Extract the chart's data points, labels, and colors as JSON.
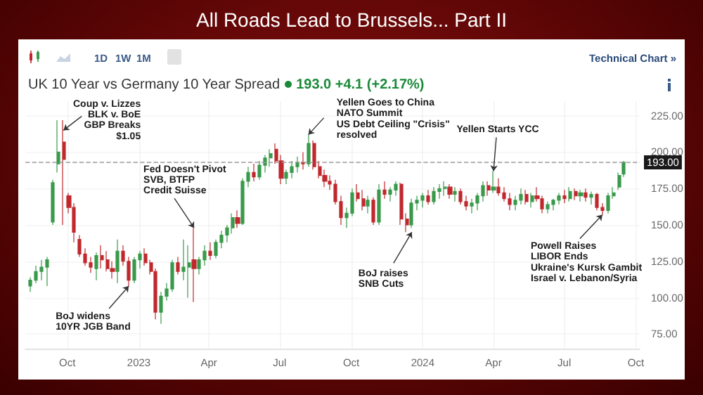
{
  "chart_data": {
    "type": "candlestick",
    "title": "All Roads Lead to Brussels... Part II",
    "subtitle": "UK 10 Year vs Germany 10 Year Spread",
    "ylabel": "193.0 +4.1 (+2.17%)",
    "x": [
      "2022-08-15",
      "2022-08-22",
      "2022-08-29",
      "2022-09-05",
      "2022-09-12",
      "2022-09-19",
      "2022-09-26",
      "2022-10-03",
      "2022-10-10",
      "2022-10-17",
      "2022-10-24",
      "2022-10-31",
      "2022-11-07",
      "2022-11-14",
      "2022-11-21",
      "2022-11-28",
      "2022-12-05",
      "2022-12-12",
      "2022-12-19",
      "2022-12-26",
      "2023-01-02",
      "2023-01-09",
      "2023-01-16",
      "2023-01-23",
      "2023-01-30",
      "2023-02-06",
      "2023-02-13",
      "2023-02-20",
      "2023-02-27",
      "2023-03-06",
      "2023-03-13",
      "2023-03-20",
      "2023-03-27",
      "2023-04-03",
      "2023-04-10",
      "2023-04-17",
      "2023-04-24",
      "2023-05-01",
      "2023-05-08",
      "2023-05-15",
      "2023-05-22",
      "2023-05-29",
      "2023-06-05",
      "2023-06-12",
      "2023-06-19",
      "2023-06-26",
      "2023-07-03",
      "2023-07-10",
      "2023-07-17",
      "2023-07-24",
      "2023-07-31",
      "2023-08-07",
      "2023-08-14",
      "2023-08-21",
      "2023-08-28",
      "2023-09-04",
      "2023-09-11",
      "2023-09-18",
      "2023-09-25",
      "2023-10-02",
      "2023-10-09",
      "2023-10-16",
      "2023-10-23",
      "2023-10-30",
      "2023-11-06",
      "2023-11-13",
      "2023-11-20",
      "2023-11-27",
      "2023-12-04",
      "2023-12-11",
      "2023-12-18",
      "2023-12-25",
      "2024-01-01",
      "2024-01-08",
      "2024-01-15",
      "2024-01-22",
      "2024-01-29",
      "2024-02-05",
      "2024-02-12",
      "2024-02-19",
      "2024-02-26",
      "2024-03-04",
      "2024-03-11",
      "2024-03-18",
      "2024-03-25",
      "2024-04-01",
      "2024-04-08",
      "2024-04-15",
      "2024-04-22",
      "2024-04-29",
      "2024-05-06",
      "2024-05-13",
      "2024-05-20",
      "2024-05-27",
      "2024-06-03",
      "2024-06-10",
      "2024-06-17",
      "2024-06-24",
      "2024-07-01",
      "2024-07-08",
      "2024-07-15",
      "2024-07-22",
      "2024-07-29",
      "2024-08-05",
      "2024-08-12",
      "2024-08-19",
      "2024-08-26",
      "2024-09-02",
      "2024-09-09",
      "2024-09-16"
    ],
    "ohlc": [
      [
        108,
        114,
        104,
        112
      ],
      [
        112,
        122,
        110,
        118
      ],
      [
        118,
        126,
        112,
        121
      ],
      [
        121,
        128,
        108,
        126
      ],
      [
        152,
        181,
        150,
        179
      ],
      [
        192,
        222,
        186,
        200
      ],
      [
        207,
        222,
        150,
        195
      ],
      [
        170,
        172,
        158,
        162
      ],
      [
        162,
        165,
        138,
        145
      ],
      [
        140,
        143,
        128,
        130
      ],
      [
        130,
        134,
        122,
        124
      ],
      [
        124,
        128,
        117,
        121
      ],
      [
        120,
        131,
        112,
        129
      ],
      [
        129,
        136,
        120,
        126
      ],
      [
        126,
        132,
        118,
        120
      ],
      [
        120,
        125,
        113,
        118
      ],
      [
        118,
        140,
        110,
        132
      ],
      [
        132,
        136,
        122,
        125
      ],
      [
        125,
        128,
        108,
        112
      ],
      [
        112,
        128,
        110,
        126
      ],
      [
        126,
        132,
        120,
        130
      ],
      [
        130,
        134,
        122,
        124
      ],
      [
        124,
        126,
        116,
        118
      ],
      [
        118,
        120,
        85,
        90
      ],
      [
        90,
        104,
        82,
        101
      ],
      [
        101,
        110,
        98,
        106
      ],
      [
        106,
        126,
        104,
        124
      ],
      [
        124,
        128,
        116,
        118
      ],
      [
        118,
        140,
        112,
        121
      ],
      [
        121,
        136,
        100,
        124
      ],
      [
        126,
        148,
        97,
        120
      ],
      [
        120,
        128,
        116,
        126
      ],
      [
        126,
        136,
        122,
        132
      ],
      [
        132,
        138,
        126,
        129
      ],
      [
        129,
        140,
        127,
        138
      ],
      [
        138,
        146,
        134,
        143
      ],
      [
        143,
        150,
        138,
        148
      ],
      [
        148,
        158,
        144,
        155
      ],
      [
        155,
        160,
        148,
        151
      ],
      [
        151,
        182,
        150,
        180
      ],
      [
        180,
        190,
        176,
        186
      ],
      [
        186,
        192,
        180,
        183
      ],
      [
        183,
        194,
        181,
        191
      ],
      [
        191,
        198,
        186,
        196
      ],
      [
        196,
        202,
        190,
        199
      ],
      [
        202,
        206,
        192,
        194
      ],
      [
        194,
        198,
        178,
        182
      ],
      [
        182,
        188,
        178,
        186
      ],
      [
        186,
        194,
        182,
        190
      ],
      [
        190,
        197,
        186,
        193
      ],
      [
        193,
        200,
        188,
        192
      ],
      [
        192,
        212,
        190,
        206
      ],
      [
        206,
        208,
        188,
        190
      ],
      [
        190,
        194,
        182,
        184
      ],
      [
        184,
        188,
        176,
        180
      ],
      [
        180,
        184,
        174,
        178
      ],
      [
        178,
        181,
        164,
        166
      ],
      [
        166,
        170,
        150,
        155
      ],
      [
        155,
        162,
        148,
        158
      ],
      [
        158,
        175,
        156,
        172
      ],
      [
        172,
        178,
        166,
        168
      ],
      [
        168,
        174,
        160,
        163
      ],
      [
        163,
        170,
        158,
        167
      ],
      [
        167,
        169,
        150,
        152
      ],
      [
        152,
        178,
        150,
        174
      ],
      [
        174,
        180,
        168,
        171
      ],
      [
        171,
        176,
        166,
        174
      ],
      [
        174,
        180,
        170,
        178
      ],
      [
        178,
        179,
        150,
        154
      ],
      [
        154,
        158,
        145,
        150
      ],
      [
        150,
        168,
        148,
        165
      ],
      [
        165,
        170,
        160,
        167
      ],
      [
        167,
        172,
        162,
        170
      ],
      [
        170,
        174,
        164,
        166
      ],
      [
        166,
        176,
        164,
        173
      ],
      [
        173,
        178,
        168,
        175
      ],
      [
        175,
        180,
        170,
        176
      ],
      [
        176,
        178,
        168,
        171
      ],
      [
        171,
        176,
        166,
        173
      ],
      [
        173,
        175,
        164,
        166
      ],
      [
        166,
        170,
        160,
        163
      ],
      [
        163,
        168,
        158,
        165
      ],
      [
        165,
        172,
        160,
        170
      ],
      [
        170,
        180,
        166,
        177
      ],
      [
        177,
        180,
        170,
        174
      ],
      [
        174,
        187,
        172,
        176
      ],
      [
        176,
        182,
        170,
        172
      ],
      [
        172,
        176,
        166,
        168
      ],
      [
        168,
        172,
        160,
        164
      ],
      [
        164,
        170,
        160,
        167
      ],
      [
        167,
        175,
        164,
        171
      ],
      [
        171,
        174,
        164,
        166
      ],
      [
        166,
        172,
        162,
        170
      ],
      [
        170,
        176,
        166,
        168
      ],
      [
        168,
        170,
        158,
        161
      ],
      [
        161,
        166,
        158,
        164
      ],
      [
        164,
        168,
        160,
        167
      ],
      [
        167,
        172,
        164,
        170
      ],
      [
        170,
        174,
        165,
        168
      ],
      [
        168,
        176,
        166,
        173
      ],
      [
        173,
        175,
        167,
        170
      ],
      [
        170,
        174,
        166,
        172
      ],
      [
        172,
        175,
        166,
        169
      ],
      [
        169,
        173,
        164,
        171
      ],
      [
        171,
        172,
        160,
        162
      ],
      [
        162,
        165,
        157,
        160
      ],
      [
        160,
        172,
        158,
        170
      ],
      [
        170,
        176,
        168,
        172
      ],
      [
        176,
        186,
        174,
        184
      ],
      [
        185,
        194,
        183,
        193
      ]
    ],
    "xlim": [
      "2022-08-08",
      "2024-10-06"
    ],
    "xticks": [
      {
        "value": "2022-10-01",
        "label": "Oct"
      },
      {
        "value": "2023-01-01",
        "label": "2023"
      },
      {
        "value": "2023-04-01",
        "label": "Apr"
      },
      {
        "value": "2023-07-01",
        "label": "Jul"
      },
      {
        "value": "2023-10-01",
        "label": "Oct"
      },
      {
        "value": "2024-01-01",
        "label": "2024"
      },
      {
        "value": "2024-04-01",
        "label": "Apr"
      },
      {
        "value": "2024-07-01",
        "label": "Jul"
      },
      {
        "value": "2024-10-01",
        "label": "Oct"
      }
    ],
    "ylim": [
      65,
      235
    ],
    "yticks": [
      {
        "value": 75,
        "label": "75.00"
      },
      {
        "value": 100,
        "label": "100.00"
      },
      {
        "value": 125,
        "label": "125.00"
      },
      {
        "value": 150,
        "label": "150.00"
      },
      {
        "value": 175,
        "label": "175.00"
      },
      {
        "value": 200,
        "label": "200.00"
      },
      {
        "value": 225,
        "label": "225.00"
      }
    ],
    "ref_lines": [
      {
        "axis": "y",
        "value": 193,
        "label": "193.00",
        "color": "#9a9a9a",
        "line_style": "dashed"
      }
    ],
    "grid": true,
    "annotations": [
      {
        "text": "Coup v. Lizzes\nBLK v. BoE\nGBP Breaks\n$1.05",
        "x": "2022-09-26",
        "y": 215
      },
      {
        "text": "Fed Doesn't Pivot\nSVB, BTFP\nCredit Suisse",
        "x": "2023-03-13",
        "y": 148
      },
      {
        "text": "BoJ widens\n10YR JGB Band",
        "x": "2022-12-19",
        "y": 108
      },
      {
        "text": "Yellen Goes to China\nNATO Summit\nUS Debt Ceiling \"Crisis\"\nresolved",
        "x": "2023-08-07",
        "y": 212
      },
      {
        "text": "Yellen Starts YCC",
        "x": "2024-04-01",
        "y": 187
      },
      {
        "text": "BoJ raises\nSNB Cuts",
        "x": "2023-12-18",
        "y": 145
      },
      {
        "text": "Powell Raises\nLIBOR Ends\nUkraine's Kursk Gambit\nIsrael v. Lebanon/Syria",
        "x": "2024-08-19",
        "y": 157
      },
      "1D",
      "1W",
      "1M",
      "Technical Chart »"
    ]
  }
}
